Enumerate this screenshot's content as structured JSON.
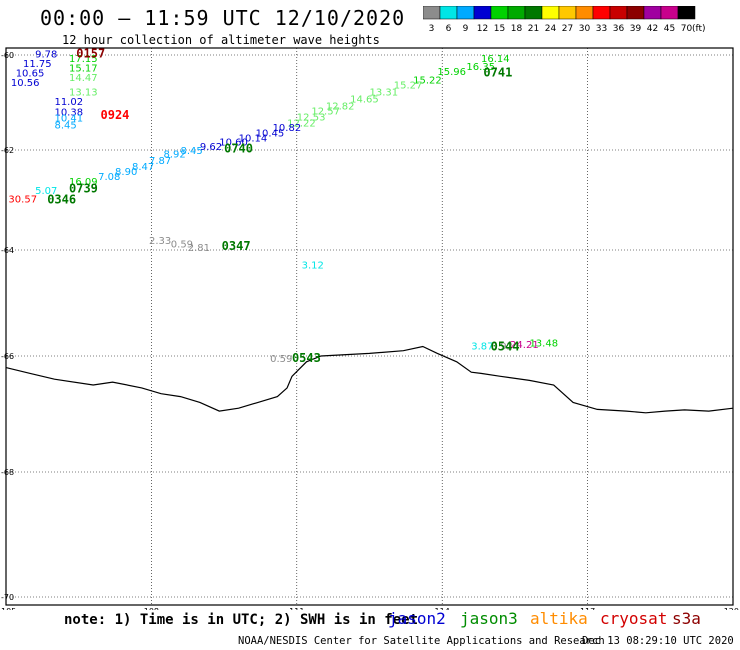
{
  "title": "00:00 – 11:59 UTC 12/10/2020",
  "subtitle": "12 hour collection of altimeter wave heights",
  "scale": {
    "colors": [
      "#8c8c8c",
      "#00e6e6",
      "#00aaff",
      "#0000d2",
      "#00d200",
      "#00aa00",
      "#007800",
      "#ffff00",
      "#ffc800",
      "#ff8c00",
      "#ff0000",
      "#c80000",
      "#8c0000",
      "#a000a0",
      "#c8008c",
      "#000000"
    ],
    "labels": [
      "3",
      "6",
      "9",
      "12",
      "15",
      "18",
      "21",
      "24",
      "27",
      "30",
      "33",
      "36",
      "39",
      "42",
      "45",
      "70"
    ],
    "unit": "(ft)"
  },
  "map": {
    "lon_ticks": [
      "105",
      "108",
      "111",
      "114",
      "117",
      "120"
    ],
    "lat_ticks": [
      "-60",
      "-62",
      "-64",
      "-66",
      "-68",
      "-70"
    ],
    "coastline": [
      [
        105,
        -66.2
      ],
      [
        105.5,
        -66.3
      ],
      [
        106,
        -66.4
      ],
      [
        106.8,
        -66.5
      ],
      [
        107.2,
        -66.45
      ],
      [
        107.8,
        -66.55
      ],
      [
        108.2,
        -66.65
      ],
      [
        108.6,
        -66.7
      ],
      [
        109,
        -66.8
      ],
      [
        109.4,
        -66.95
      ],
      [
        109.8,
        -66.9
      ],
      [
        110.2,
        -66.8
      ],
      [
        110.6,
        -66.7
      ],
      [
        110.8,
        -66.55
      ],
      [
        110.9,
        -66.35
      ],
      [
        111.2,
        -66.1
      ],
      [
        111.5,
        -66.0
      ],
      [
        112.5,
        -65.95
      ],
      [
        113.2,
        -65.9
      ],
      [
        113.6,
        -65.82
      ],
      [
        113.9,
        -65.95
      ],
      [
        114.3,
        -66.1
      ],
      [
        114.6,
        -66.28
      ],
      [
        114.8,
        -66.3
      ],
      [
        115.2,
        -66.35
      ],
      [
        115.8,
        -66.42
      ],
      [
        116.3,
        -66.5
      ],
      [
        116.7,
        -66.8
      ],
      [
        117.2,
        -66.92
      ],
      [
        117.8,
        -66.95
      ],
      [
        118.2,
        -66.98
      ],
      [
        118.6,
        -66.95
      ],
      [
        119,
        -66.93
      ],
      [
        119.5,
        -66.95
      ],
      [
        120,
        -66.9
      ]
    ]
  },
  "legend": {
    "note": "note: 1) Time is in UTC; 2) SWH is in feet",
    "satellites": [
      {
        "name": "jason2",
        "color": "#0000d2"
      },
      {
        "name": "jason3",
        "color": "#008c00"
      },
      {
        "name": "altika",
        "color": "#ff8c00"
      },
      {
        "name": "cryosat",
        "color": "#d20000"
      },
      {
        "name": "s3a",
        "color": "#8c0000"
      }
    ]
  },
  "footer": "NOAA/NESDIS Center for Satellite Applications and Research",
  "datestamp": "Dec 13 08:29:10 UTC 2020",
  "passes": [
    {
      "text": "0157",
      "lon": 106.45,
      "lat": -60.05,
      "color": "#8c0000"
    },
    {
      "text": "0924",
      "lon": 106.95,
      "lat": -61.35,
      "color": "#ff0000"
    },
    {
      "text": "0740",
      "lon": 109.5,
      "lat": -62.05,
      "color": "#007800"
    },
    {
      "text": "0741",
      "lon": 114.85,
      "lat": -60.45,
      "color": "#007800"
    },
    {
      "text": "0739",
      "lon": 106.3,
      "lat": -62.85,
      "color": "#007800"
    },
    {
      "text": "0346",
      "lon": 105.85,
      "lat": -63.07,
      "color": "#007800"
    },
    {
      "text": "0347",
      "lon": 109.45,
      "lat": -64.0,
      "color": "#007800"
    },
    {
      "text": "0543",
      "lon": 110.9,
      "lat": -66.1,
      "color": "#007800"
    },
    {
      "text": "0544",
      "lon": 115.0,
      "lat": -65.9,
      "color": "#007800"
    }
  ],
  "observations": [
    {
      "text": "9.78",
      "lon": 105.6,
      "lat": -60.05,
      "color": "#0000d2"
    },
    {
      "text": "17.15",
      "lon": 106.3,
      "lat": -60.15,
      "color": "#00d200"
    },
    {
      "text": "11.75",
      "lon": 105.35,
      "lat": -60.25,
      "color": "#0000d2"
    },
    {
      "text": "15.17",
      "lon": 106.3,
      "lat": -60.35,
      "color": "#00d200"
    },
    {
      "text": "10.65",
      "lon": 105.2,
      "lat": -60.45,
      "color": "#0000d2"
    },
    {
      "text": "14.47",
      "lon": 106.3,
      "lat": -60.55,
      "color": "#66ee66"
    },
    {
      "text": "10.56",
      "lon": 105.1,
      "lat": -60.65,
      "color": "#0000d2"
    },
    {
      "text": "13.13",
      "lon": 106.3,
      "lat": -60.85,
      "color": "#66ee66"
    },
    {
      "text": "11.02",
      "lon": 106.0,
      "lat": -61.05,
      "color": "#0000d2"
    },
    {
      "text": "10.38",
      "lon": 106.0,
      "lat": -61.27,
      "color": "#0000d2"
    },
    {
      "text": "10.41",
      "lon": 106.0,
      "lat": -61.4,
      "color": "#00aaff"
    },
    {
      "text": "8.45",
      "lon": 106.0,
      "lat": -61.55,
      "color": "#00aaff"
    },
    {
      "text": "16.14",
      "lon": 114.8,
      "lat": -60.15,
      "color": "#00d200"
    },
    {
      "text": "16.35",
      "lon": 114.5,
      "lat": -60.32,
      "color": "#00d200"
    },
    {
      "text": "15.96",
      "lon": 113.9,
      "lat": -60.42,
      "color": "#00d200"
    },
    {
      "text": "15.22",
      "lon": 113.4,
      "lat": -60.6,
      "color": "#00d200"
    },
    {
      "text": "15.27",
      "lon": 113.0,
      "lat": -60.7,
      "color": "#66ee66"
    },
    {
      "text": "13.31",
      "lon": 112.5,
      "lat": -60.85,
      "color": "#66ee66"
    },
    {
      "text": "14.65",
      "lon": 112.1,
      "lat": -61.0,
      "color": "#66ee66"
    },
    {
      "text": "12.82",
      "lon": 111.6,
      "lat": -61.15,
      "color": "#66ee66"
    },
    {
      "text": "12.57",
      "lon": 111.3,
      "lat": -61.25,
      "color": "#66ee66"
    },
    {
      "text": "12.53",
      "lon": 111.0,
      "lat": -61.38,
      "color": "#66ee66"
    },
    {
      "text": "12.22",
      "lon": 110.8,
      "lat": -61.5,
      "color": "#66ee66"
    },
    {
      "text": "10.82",
      "lon": 110.5,
      "lat": -61.6,
      "color": "#0000d2"
    },
    {
      "text": "10.45",
      "lon": 110.15,
      "lat": -61.72,
      "color": "#0000d2"
    },
    {
      "text": "10.14",
      "lon": 109.8,
      "lat": -61.82,
      "color": "#0000d2"
    },
    {
      "text": "10.60",
      "lon": 109.4,
      "lat": -61.9,
      "color": "#0000d2"
    },
    {
      "text": "9.62",
      "lon": 109.0,
      "lat": -62.0,
      "color": "#0000d2"
    },
    {
      "text": "8.45",
      "lon": 108.6,
      "lat": -62.08,
      "color": "#00aaff"
    },
    {
      "text": "8.92",
      "lon": 108.25,
      "lat": -62.15,
      "color": "#00aaff"
    },
    {
      "text": "7.87",
      "lon": 107.95,
      "lat": -62.28,
      "color": "#00aaff"
    },
    {
      "text": "8.47",
      "lon": 107.6,
      "lat": -62.4,
      "color": "#00aaff"
    },
    {
      "text": "8.90",
      "lon": 107.25,
      "lat": -62.5,
      "color": "#00aaff"
    },
    {
      "text": "7.08",
      "lon": 106.9,
      "lat": -62.6,
      "color": "#00aaff"
    },
    {
      "text": "16.09",
      "lon": 106.3,
      "lat": -62.7,
      "color": "#00d200"
    },
    {
      "text": "5.07",
      "lon": 105.6,
      "lat": -62.88,
      "color": "#00e6e6"
    },
    {
      "text": "30.57",
      "lon": 105.05,
      "lat": -63.05,
      "color": "#ff0000"
    },
    {
      "text": "2.33",
      "lon": 107.95,
      "lat": -63.88,
      "color": "#8c8c8c"
    },
    {
      "text": "0.59",
      "lon": 108.4,
      "lat": -63.95,
      "color": "#8c8c8c"
    },
    {
      "text": "2.81",
      "lon": 108.75,
      "lat": -64.02,
      "color": "#8c8c8c"
    },
    {
      "text": "3.12",
      "lon": 111.1,
      "lat": -64.35,
      "color": "#00e6e6"
    },
    {
      "text": "0.59",
      "lon": 110.45,
      "lat": -66.1,
      "color": "#8c8c8c"
    },
    {
      "text": "3.87",
      "lon": 114.6,
      "lat": -65.88,
      "color": "#00e6e6"
    },
    {
      "text": "0.92",
      "lon": 115.0,
      "lat": -65.88,
      "color": "#8c8c8c"
    },
    {
      "text": "24.21",
      "lon": 115.4,
      "lat": -65.85,
      "color": "#c8008c"
    },
    {
      "text": "13.48",
      "lon": 115.8,
      "lat": -65.82,
      "color": "#00d200"
    }
  ]
}
